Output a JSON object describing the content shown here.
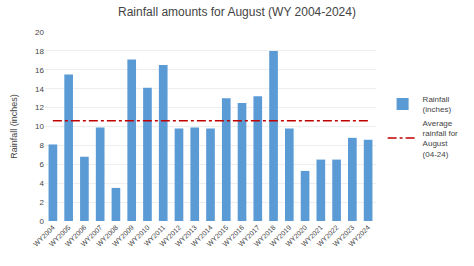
{
  "chart_data": {
    "type": "bar",
    "title": "Rainfall amounts for August (WY 2004-2024)",
    "ylabel": "Rainfall (inches)",
    "categories": [
      "WY2004",
      "WY2005",
      "WY2006",
      "WY2007",
      "WY2008",
      "WY2009",
      "WY2010",
      "WY2011",
      "WY2012",
      "WY2013",
      "WY2014",
      "WY2015",
      "WY2016",
      "WY2017",
      "WY2018",
      "WY2019",
      "WY2020",
      "WY2021",
      "WY2022",
      "WY2023",
      "WY2024"
    ],
    "series": [
      {
        "name": "Rainfall\n(inches)",
        "type": "bar",
        "color": "#5B9BD5",
        "values": [
          8.1,
          15.5,
          6.8,
          9.9,
          3.5,
          17.1,
          14.1,
          16.5,
          9.8,
          9.9,
          9.8,
          13.0,
          12.5,
          13.2,
          18.0,
          9.8,
          5.3,
          6.5,
          6.5,
          8.8,
          8.6
        ]
      },
      {
        "name": "Average\nrainfall for\nAugust\n(04-24)",
        "type": "line",
        "color": "#C00000",
        "line_style": "dashdot",
        "values": [
          10.6,
          10.6,
          10.6,
          10.6,
          10.6,
          10.6,
          10.6,
          10.6,
          10.6,
          10.6,
          10.6,
          10.6,
          10.6,
          10.6,
          10.6,
          10.6,
          10.6,
          10.6,
          10.6,
          10.6,
          10.6
        ]
      }
    ],
    "ylim": [
      0,
      20
    ],
    "yticks": [
      0,
      2,
      4,
      6,
      8,
      10,
      12,
      14,
      16,
      18,
      20
    ],
    "grid": true,
    "legend": "right"
  }
}
